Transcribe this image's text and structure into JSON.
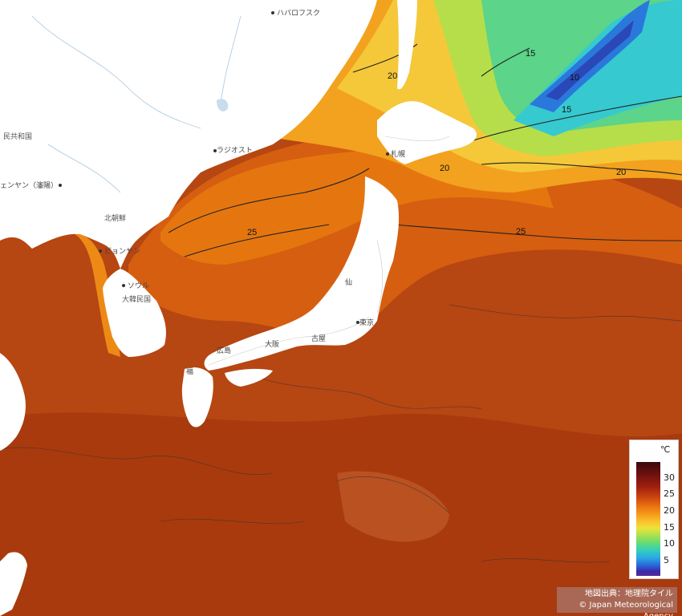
{
  "places": {
    "khabarovsk": "ハバロフスク",
    "people_republic": "民共和国",
    "shenyang": "ェンヤン（瀋陽）",
    "north_korea": "北朝鮮",
    "pyongyang": "ピョンヤン",
    "seoul": "ソウル",
    "south_korea": "大韓民国",
    "vladivostok": "ラジオスト",
    "sapporo": "札幌",
    "sendai": "仙",
    "tokyo": "東京",
    "nagoya": "古屋",
    "hiroshima": "広島",
    "osaka": "大阪",
    "fukuoka": "福"
  },
  "isotherm_labels": [
    "15",
    "20",
    "20",
    "20",
    "25",
    "25",
    "15",
    "10"
  ],
  "legend": {
    "unit": "℃",
    "ticks": [
      "30",
      "25",
      "20",
      "15",
      "10",
      "5"
    ]
  },
  "credit": {
    "line1": "地図出典：地理院タイル",
    "line2": "© Japan Meteorological Agency"
  },
  "colors": {
    "warm": "#b94a12",
    "hot": "#9e2f0c",
    "orange": "#e3700f",
    "yellow": "#f3c53a",
    "green": "#7fdc5a",
    "cyan": "#3ad0c0",
    "blue": "#2a6fd8",
    "land": "#ffffff"
  }
}
